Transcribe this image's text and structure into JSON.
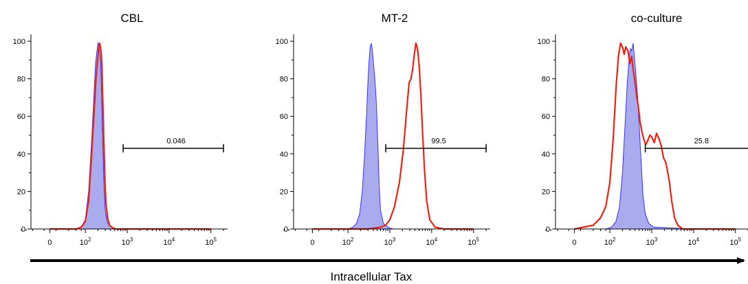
{
  "figure": {
    "xaxis_label": "Intracellular Tax"
  },
  "chart_data": [
    {
      "type": "area",
      "title": "CBL",
      "xlabel": "",
      "ylabel": "",
      "ylim": [
        0,
        100
      ],
      "yticks": [
        "0",
        "20",
        "40",
        "60",
        "80",
        "100"
      ],
      "xscale": "biexponential",
      "xticks": [
        "0",
        "10^2",
        "10^3",
        "10^4",
        "10^5"
      ],
      "series": [
        {
          "style": "filled",
          "color": "#3333ff",
          "fill": "#aaaaee",
          "x": [
            0,
            60,
            80,
            100,
            120,
            140,
            160,
            175,
            190,
            200,
            210,
            220,
            230,
            240,
            250,
            265,
            280,
            300,
            330,
            370,
            420,
            500,
            1000,
            10000,
            100000
          ],
          "y": [
            0,
            0,
            1,
            5,
            20,
            45,
            70,
            88,
            95,
            99,
            98,
            95,
            90,
            80,
            62,
            40,
            22,
            10,
            4,
            2,
            1,
            0,
            0,
            0,
            0
          ]
        },
        {
          "style": "line",
          "color": "#ee2211",
          "x": [
            0,
            60,
            80,
            100,
            120,
            140,
            160,
            180,
            200,
            210,
            220,
            230,
            240,
            250,
            260,
            275,
            290,
            310,
            340,
            380,
            430,
            520,
            1000,
            10000,
            100000
          ],
          "y": [
            0,
            0,
            1,
            4,
            15,
            38,
            60,
            80,
            92,
            97,
            99,
            97,
            94,
            86,
            70,
            50,
            30,
            14,
            6,
            2,
            1,
            0,
            0,
            0,
            0
          ]
        }
      ],
      "gate": {
        "label": "0.046",
        "from": 800,
        "to": 200000,
        "y": 43
      }
    },
    {
      "type": "area",
      "title": "MT-2",
      "xlabel": "",
      "ylabel": "",
      "ylim": [
        0,
        100
      ],
      "yticks": [
        "0",
        "20",
        "40",
        "60",
        "80",
        "100"
      ],
      "xscale": "biexponential",
      "xticks": [
        "0",
        "10^2",
        "10^3",
        "10^4",
        "10^5"
      ],
      "series": [
        {
          "style": "filled",
          "color": "#3333ff",
          "fill": "#aaaaee",
          "x": [
            0,
            100,
            130,
            160,
            190,
            220,
            250,
            280,
            300,
            320,
            340,
            360,
            380,
            400,
            440,
            480,
            520,
            560,
            600,
            700,
            900,
            1200,
            10000,
            100000
          ],
          "y": [
            0,
            0,
            1,
            3,
            8,
            20,
            40,
            62,
            78,
            90,
            97,
            99,
            96,
            90,
            80,
            66,
            44,
            22,
            10,
            3,
            1,
            0,
            0,
            0
          ]
        },
        {
          "style": "line",
          "color": "#ee2211",
          "x": [
            0,
            300,
            600,
            800,
            1000,
            1300,
            1700,
            2100,
            2500,
            2900,
            3200,
            3500,
            3800,
            4200,
            4600,
            5000,
            5500,
            6100,
            6800,
            7600,
            9000,
            12000,
            20000,
            100000
          ],
          "y": [
            0,
            0,
            1,
            2,
            5,
            12,
            25,
            42,
            62,
            78,
            80,
            85,
            92,
            99,
            96,
            88,
            72,
            50,
            30,
            15,
            5,
            1,
            0,
            0
          ]
        }
      ],
      "gate": {
        "label": "99.5",
        "from": 800,
        "to": 200000,
        "y": 43
      }
    },
    {
      "type": "area",
      "title": "co-culture",
      "xlabel": "",
      "ylabel": "",
      "ylim": [
        0,
        100
      ],
      "yticks": [
        "0",
        "20",
        "40",
        "60",
        "80",
        "100"
      ],
      "xscale": "biexponential",
      "xticks": [
        "0",
        "10^2",
        "10^3",
        "10^4",
        "10^5"
      ],
      "series": [
        {
          "style": "filled",
          "color": "#3333ff",
          "fill": "#aaaaee",
          "x": [
            0,
            80,
            110,
            140,
            170,
            200,
            230,
            260,
            290,
            310,
            330,
            360,
            390,
            420,
            460,
            500,
            560,
            620,
            700,
            850,
            1100,
            10000,
            100000
          ],
          "y": [
            0,
            0,
            1,
            4,
            12,
            30,
            55,
            78,
            92,
            96,
            95,
            99,
            90,
            82,
            70,
            55,
            35,
            18,
            8,
            3,
            1,
            0,
            0
          ]
        },
        {
          "style": "line",
          "color": "#ee2211",
          "x": [
            0,
            40,
            60,
            80,
            100,
            120,
            140,
            160,
            180,
            200,
            220,
            240,
            270,
            300,
            330,
            360,
            400,
            440,
            480,
            520,
            580,
            640,
            720,
            800,
            900,
            1000,
            1150,
            1300,
            1500,
            1700,
            1900,
            2200,
            2600,
            3000,
            3500,
            4200,
            5500,
            100000
          ],
          "y": [
            0,
            2,
            6,
            12,
            25,
            48,
            75,
            92,
            99,
            97,
            93,
            97,
            95,
            88,
            92,
            85,
            78,
            70,
            65,
            58,
            52,
            48,
            45,
            47,
            50,
            49,
            46,
            51,
            48,
            44,
            38,
            35,
            26,
            15,
            6,
            2,
            0,
            0
          ]
        }
      ],
      "gate": {
        "label": "25.8",
        "from": 700,
        "to": 300000,
        "y": 43
      }
    }
  ]
}
